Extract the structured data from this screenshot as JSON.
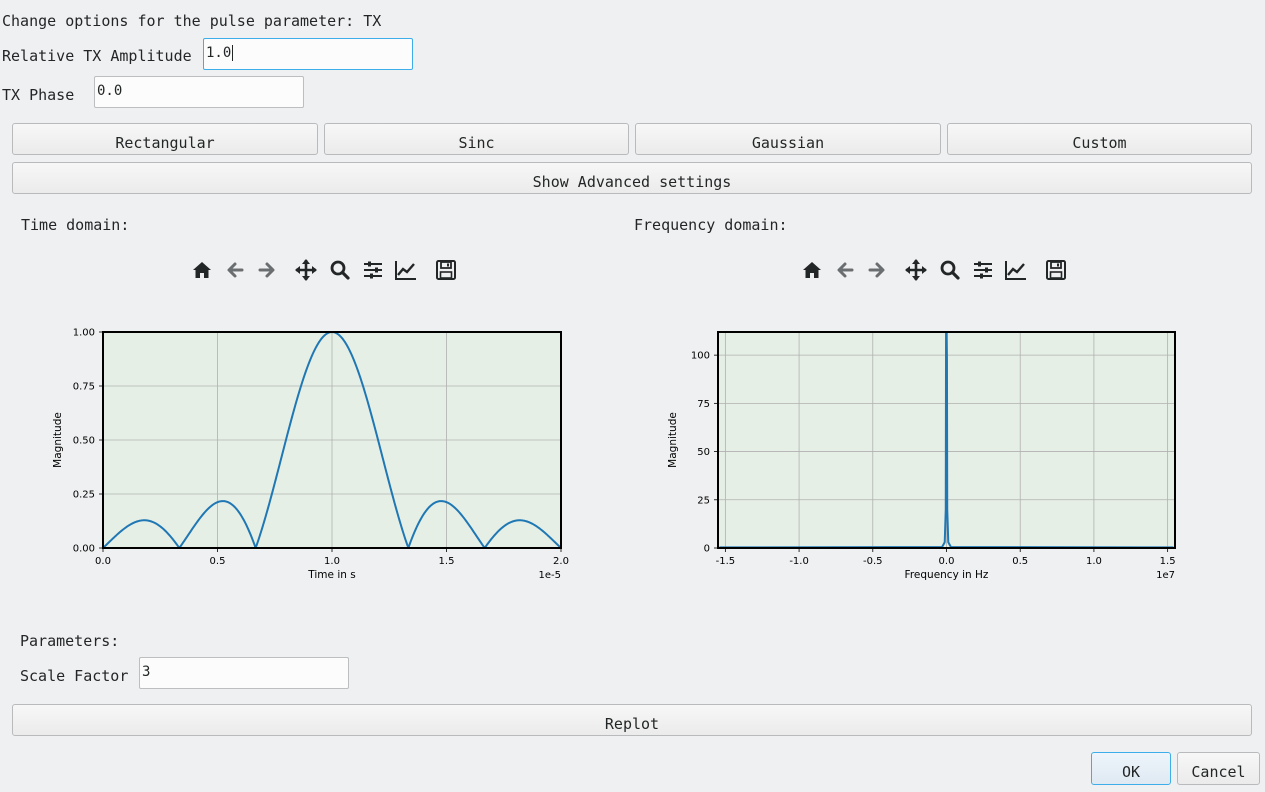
{
  "dialog": {
    "title_text": "Change options for the pulse parameter: TX",
    "amplitude_label": "Relative TX Amplitude",
    "amplitude_value": "1.0",
    "phase_label": "TX Phase",
    "phase_value": "0.0"
  },
  "pulse_shapes": [
    "Rectangular",
    "Sinc",
    "Gaussian",
    "Custom"
  ],
  "advanced_button": "Show Advanced settings",
  "time_panel": {
    "heading": "Time domain:"
  },
  "freq_panel": {
    "heading": "Frequency domain:"
  },
  "toolbar_icons": [
    "home-icon",
    "back-arrow-icon",
    "forward-arrow-icon",
    "pan-icon",
    "zoom-icon",
    "configure-subplots-icon",
    "edit-axis-icon",
    "save-icon"
  ],
  "parameters": {
    "heading": "Parameters:",
    "scale_label": "Scale Factor",
    "scale_value": "3"
  },
  "replot_button": "Replot",
  "ok_button": "OK",
  "cancel_button": "Cancel",
  "colors": {
    "plot_bg": "#e6efe6",
    "line": "#1f77b4",
    "grid": "#b0b0b0",
    "focus": "#3daee9"
  },
  "chart_data": [
    {
      "type": "line",
      "xlabel": "Time in s",
      "ylabel": "Magnitude",
      "x_offset_label": "1e-5",
      "xlim": [
        0,
        2.0
      ],
      "ylim": [
        0,
        1.0
      ],
      "xticks": [
        "0.0",
        "0.5",
        "1.0",
        "1.5",
        "2.0"
      ],
      "xtick_values": [
        0,
        0.5,
        1.0,
        1.5,
        2.0
      ],
      "yticks": [
        "0.00",
        "0.25",
        "0.50",
        "0.75",
        "1.00"
      ],
      "ytick_values": [
        0,
        0.25,
        0.5,
        0.75,
        1.0
      ],
      "grid": true,
      "series": [
        {
          "formula": "|sinc(3*(x-1))|",
          "points": 400
        }
      ]
    },
    {
      "type": "line",
      "xlabel": "Frequency in Hz",
      "ylabel": "Magnitude",
      "x_offset_label": "1e7",
      "xlim": [
        -1.55,
        1.55
      ],
      "ylim": [
        0,
        112
      ],
      "xticks": [
        "-1.5",
        "-1.0",
        "-0.5",
        "0.0",
        "0.5",
        "1.0",
        "1.5"
      ],
      "xtick_values": [
        -1.5,
        -1.0,
        -0.5,
        0.0,
        0.5,
        1.0,
        1.5
      ],
      "yticks": [
        "0",
        "25",
        "50",
        "75",
        "100"
      ],
      "ytick_values": [
        0,
        25,
        50,
        75,
        100
      ],
      "grid": true,
      "series": [
        {
          "peak_at": 0.0,
          "peak_value": 112
        }
      ]
    }
  ]
}
